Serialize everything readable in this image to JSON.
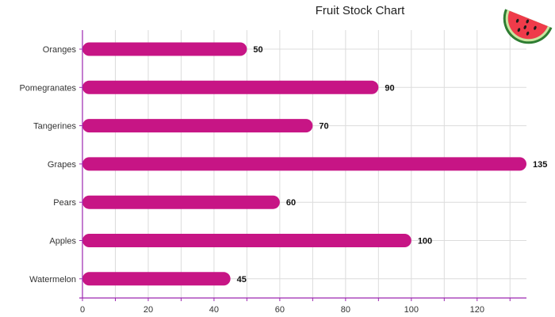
{
  "chart_data": {
    "type": "bar",
    "orientation": "horizontal",
    "title": "Fruit Stock Chart",
    "xlabel": "",
    "ylabel": "",
    "categories": [
      "Oranges",
      "Pomegranates",
      "Tangerines",
      "Grapes",
      "Pears",
      "Apples",
      "Watermelon"
    ],
    "values": [
      50,
      90,
      70,
      135,
      60,
      100,
      45
    ],
    "xlim": [
      0,
      135
    ],
    "xticks": [
      0,
      20,
      40,
      60,
      80,
      100,
      120
    ],
    "grid": true,
    "legend": "none",
    "bar_color": "#c71585",
    "axis_color": "#9c27b0",
    "icon": "watermelon-slice-icon"
  }
}
